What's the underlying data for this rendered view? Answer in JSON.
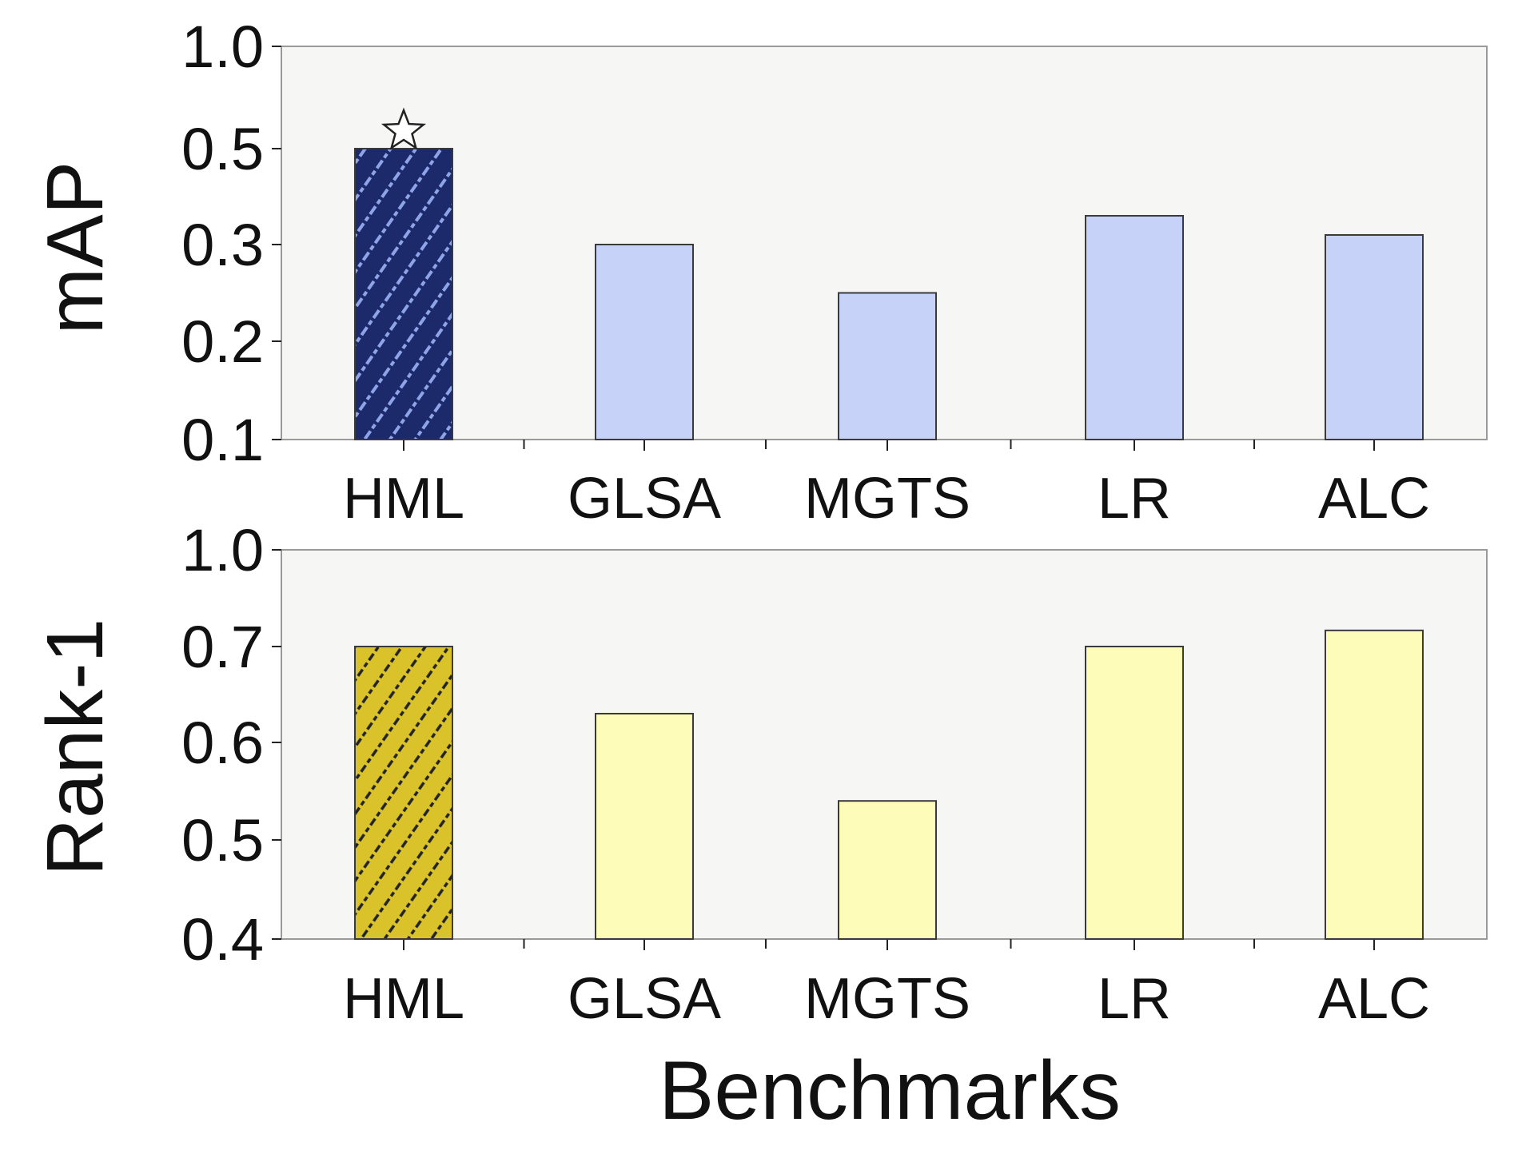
{
  "chart_data": [
    {
      "type": "bar",
      "categories": [
        "HML",
        "GLSA",
        "MGTS",
        "LR",
        "ALC"
      ],
      "values": [
        0.5,
        0.3,
        0.25,
        0.36,
        0.32
      ],
      "ylabel": "mAP",
      "yticks": [
        "0.1",
        "0.2",
        "0.3",
        "0.5",
        "1.0"
      ],
      "highlight": {
        "category": "HML",
        "marker": "star-icon",
        "hatched": true
      },
      "colors": {
        "highlight": "#1c2a6b",
        "hatch": "#8fa3e8",
        "bars": "#c7d2f8",
        "edge": "#3a3a3a",
        "plot_bg": "#f6f6f4"
      },
      "grid": false
    },
    {
      "type": "bar",
      "categories": [
        "HML",
        "GLSA",
        "MGTS",
        "LR",
        "ALC"
      ],
      "values": [
        0.7,
        0.63,
        0.54,
        0.7,
        0.75
      ],
      "ylabel": "Rank-1",
      "xlabel": "Benchmarks",
      "yticks": [
        "0.4",
        "0.5",
        "0.6",
        "0.7",
        "1.0"
      ],
      "highlight": {
        "category": "HML",
        "hatched": true
      },
      "colors": {
        "highlight": "#d9c22a",
        "hatch": "#222222",
        "bars": "#fdfcb8",
        "edge": "#3a3a3a",
        "plot_bg": "#f6f6f4"
      },
      "grid": false
    }
  ]
}
